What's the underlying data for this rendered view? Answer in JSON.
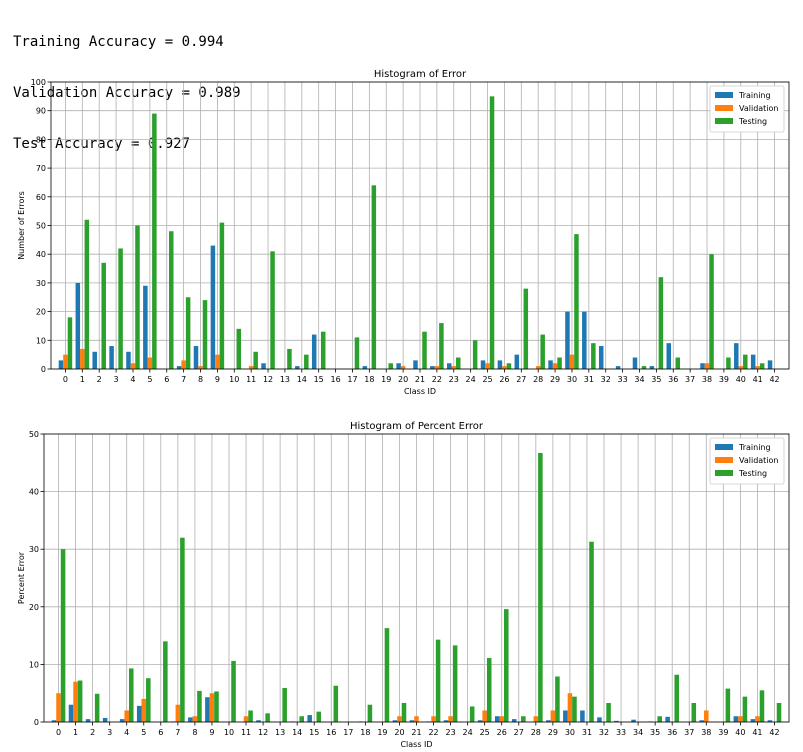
{
  "stats": {
    "training": "Training Accuracy = 0.994",
    "validation": "Validation Accuracy = 0.989",
    "test": "Test Accuracy = 0.927"
  },
  "colors": {
    "training": "#1f77b4",
    "validation": "#ff7f0e",
    "testing": "#2ca02c"
  },
  "chart_data": [
    {
      "type": "bar",
      "title": "Histogram of Error",
      "xlabel": "Class ID",
      "ylabel": "Number of Errors",
      "ylim": [
        0,
        100
      ],
      "yticks": [
        0,
        10,
        20,
        30,
        40,
        50,
        60,
        70,
        80,
        90,
        100
      ],
      "grid": true,
      "legend": "top-right",
      "categories": [
        "0",
        "1",
        "2",
        "3",
        "4",
        "5",
        "6",
        "7",
        "8",
        "9",
        "10",
        "11",
        "12",
        "13",
        "14",
        "15",
        "16",
        "17",
        "18",
        "19",
        "20",
        "21",
        "22",
        "23",
        "24",
        "25",
        "26",
        "27",
        "28",
        "29",
        "30",
        "31",
        "32",
        "33",
        "34",
        "35",
        "36",
        "37",
        "38",
        "39",
        "40",
        "41",
        "42"
      ],
      "series": [
        {
          "name": "Training",
          "color": "#1f77b4",
          "values": [
            3,
            30,
            6,
            8,
            6,
            29,
            0,
            1,
            8,
            43,
            0,
            0,
            2,
            0,
            1,
            12,
            0,
            0,
            1,
            0,
            2,
            3,
            1,
            2,
            0,
            3,
            3,
            5,
            0,
            3,
            20,
            20,
            8,
            1,
            4,
            1,
            9,
            0,
            2,
            0,
            9,
            5,
            3
          ]
        },
        {
          "name": "Validation",
          "color": "#ff7f0e",
          "values": [
            5,
            7,
            0,
            0,
            2,
            4,
            0,
            3,
            1,
            5,
            0,
            1,
            0,
            0,
            0,
            0,
            0,
            0,
            0,
            0,
            1,
            0,
            1,
            1,
            0,
            2,
            1,
            0,
            1,
            2,
            5,
            0,
            0,
            0,
            0,
            0,
            0,
            0,
            2,
            0,
            1,
            1,
            0
          ]
        },
        {
          "name": "Testing",
          "color": "#2ca02c",
          "values": [
            18,
            52,
            37,
            42,
            50,
            89,
            48,
            25,
            24,
            51,
            14,
            6,
            41,
            7,
            5,
            13,
            0,
            11,
            64,
            2,
            0,
            13,
            16,
            4,
            10,
            95,
            2,
            28,
            12,
            4,
            47,
            9,
            0,
            0,
            1,
            32,
            4,
            0,
            40,
            4,
            5,
            2,
            0
          ]
        }
      ]
    },
    {
      "type": "bar",
      "title": "Histogram of Percent Error",
      "xlabel": "Class ID",
      "ylabel": "Percent Error",
      "ylim": [
        0,
        50
      ],
      "yticks": [
        0,
        10,
        20,
        30,
        40,
        50
      ],
      "grid": true,
      "legend": "top-right",
      "categories": [
        "0",
        "1",
        "2",
        "3",
        "4",
        "5",
        "6",
        "7",
        "8",
        "9",
        "10",
        "11",
        "12",
        "13",
        "14",
        "15",
        "16",
        "17",
        "18",
        "19",
        "20",
        "21",
        "22",
        "23",
        "24",
        "25",
        "26",
        "27",
        "28",
        "29",
        "30",
        "31",
        "32",
        "33",
        "34",
        "35",
        "36",
        "37",
        "38",
        "39",
        "40",
        "41",
        "42"
      ],
      "series": [
        {
          "name": "Training",
          "color": "#1f77b4",
          "values": [
            0.3,
            3,
            0.5,
            0.7,
            0.5,
            2.8,
            0,
            0.1,
            0.8,
            4.3,
            0,
            0,
            0.3,
            0,
            0.1,
            1.2,
            0,
            0,
            0.1,
            0,
            0.3,
            0.3,
            0.1,
            0.3,
            0,
            0.3,
            1,
            0.5,
            0,
            0.3,
            2,
            2,
            0.8,
            0.2,
            0.4,
            0.1,
            0.9,
            0,
            0.3,
            0,
            1,
            0.5,
            0.3
          ]
        },
        {
          "name": "Validation",
          "color": "#ff7f0e",
          "values": [
            5,
            7,
            0,
            0,
            2,
            4,
            0,
            3,
            1,
            5,
            0,
            1,
            0,
            0,
            0,
            0,
            0,
            0,
            0,
            0,
            1,
            1,
            1,
            1,
            0,
            2,
            1,
            0,
            1,
            2,
            5,
            0,
            0,
            0,
            0,
            0,
            0,
            0,
            2,
            0,
            1,
            1,
            0
          ]
        },
        {
          "name": "Testing",
          "color": "#2ca02c",
          "values": [
            30,
            7.2,
            4.9,
            0,
            9.3,
            7.6,
            14,
            32,
            5.4,
            5.3,
            10.6,
            2,
            1.5,
            5.9,
            1,
            1.8,
            6.3,
            0,
            3,
            16.3,
            3.3,
            0,
            14.3,
            13.3,
            2.7,
            11.1,
            19.6,
            1,
            46.7,
            7.9,
            4.4,
            31.3,
            3.3,
            0,
            0,
            1,
            8.2,
            3.3,
            0,
            5.8,
            4.4,
            5.5,
            3.3
          ]
        }
      ]
    }
  ]
}
